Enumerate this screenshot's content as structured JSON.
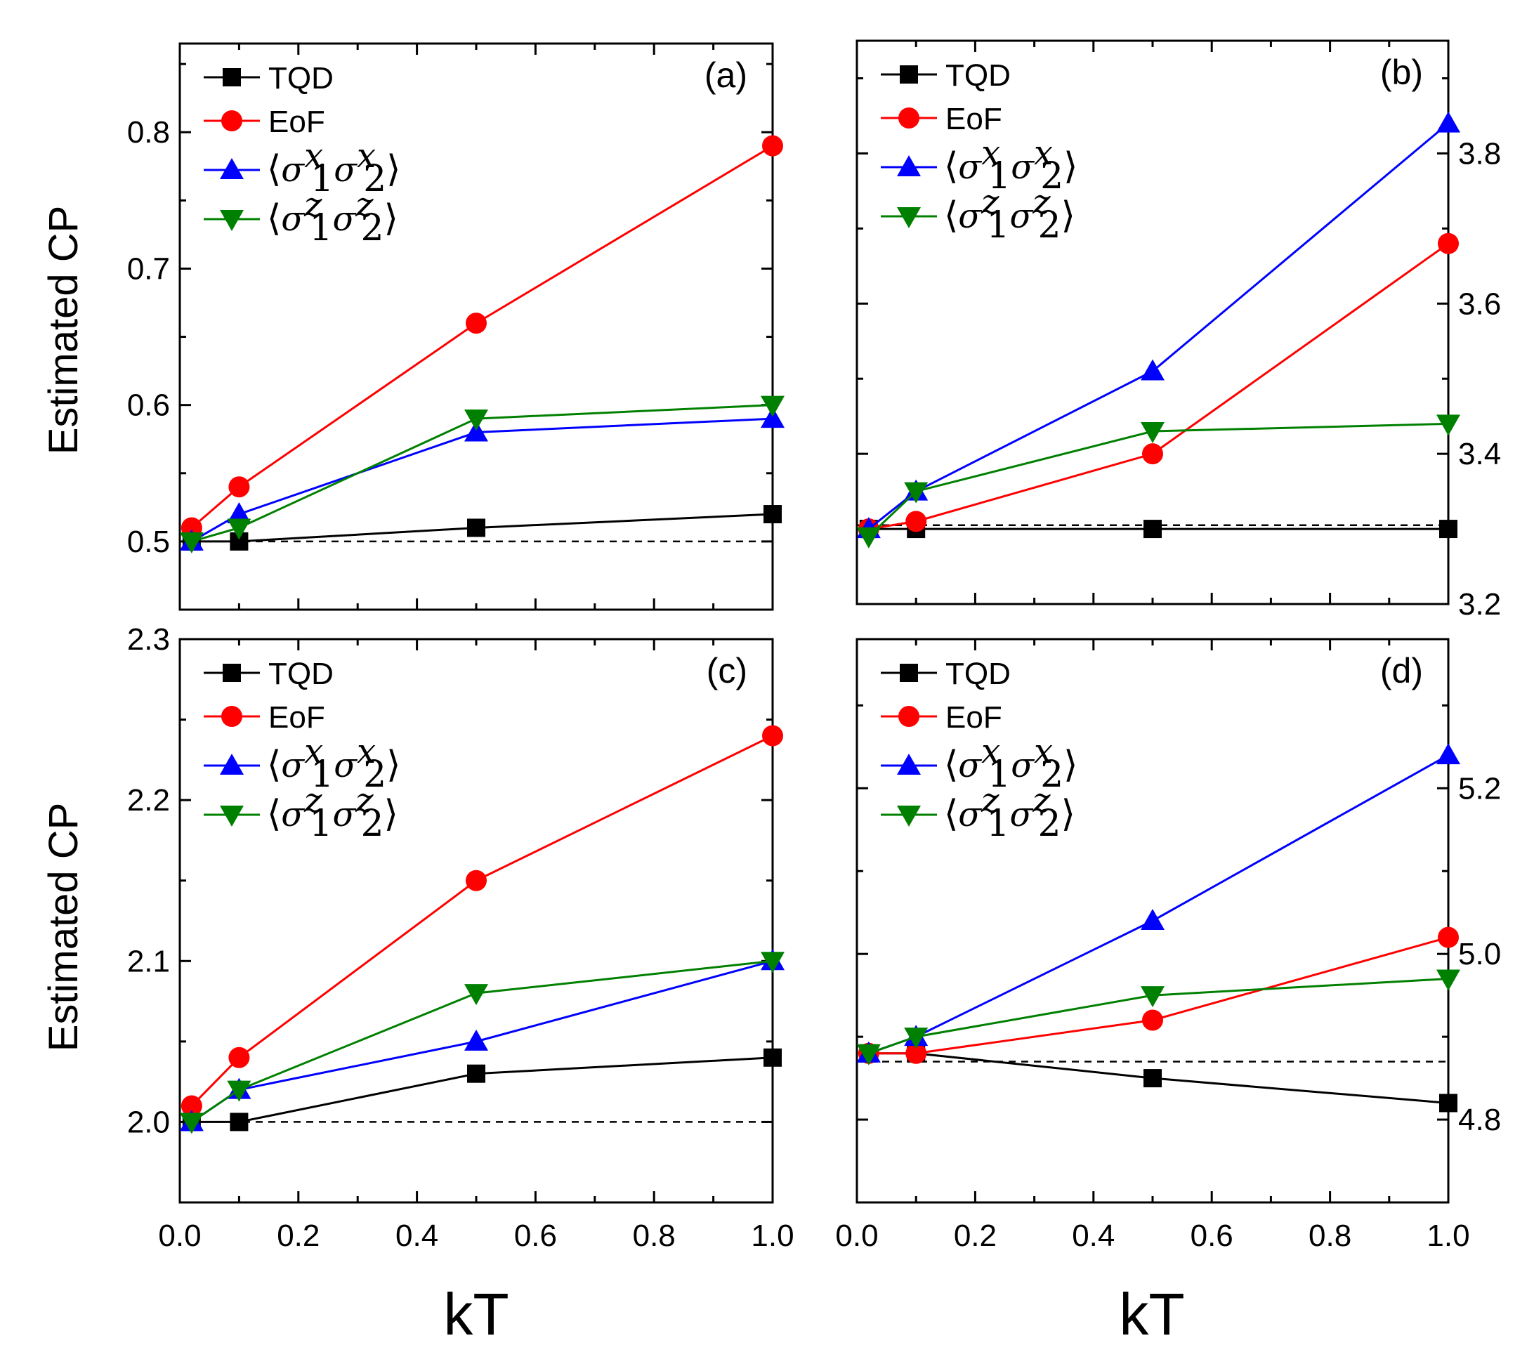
{
  "legend": {
    "tqd": "TQD",
    "eof": "EoF",
    "sxx": "⟨σ₁ˣσ₂ˣ⟩",
    "szz": "⟨σ₁ᶻσ₂ᶻ⟩"
  },
  "colors": {
    "tqd": "#000000",
    "eof": "#ff0000",
    "sxx": "#0000ff",
    "szz": "#008000"
  },
  "chart_data": [
    {
      "type": "line",
      "panel": "(a)",
      "xlabel": "kT",
      "ylabel": "Estimated CP",
      "xlim": [
        0,
        1.0
      ],
      "ylim": [
        0.45,
        0.865
      ],
      "y_axis_side": "left",
      "yticks": [
        "0.5",
        "0.6",
        "0.7",
        "0.8"
      ],
      "xticks": [],
      "reference_line": 0.5,
      "x": [
        0.02,
        0.1,
        0.5,
        1.0
      ],
      "series": [
        {
          "name": "TQD",
          "key": "tqd",
          "marker": "square",
          "values": [
            0.5,
            0.5,
            0.51,
            0.52
          ]
        },
        {
          "name": "EoF",
          "key": "eof",
          "marker": "circle",
          "values": [
            0.51,
            0.54,
            0.66,
            0.79
          ]
        },
        {
          "name": "⟨σ₁ˣσ₂ˣ⟩",
          "key": "sxx",
          "marker": "triangle-up",
          "values": [
            0.5,
            0.52,
            0.58,
            0.59
          ]
        },
        {
          "name": "⟨σ₁ᶻσ₂ᶻ⟩",
          "key": "szz",
          "marker": "triangle-down",
          "values": [
            0.5,
            0.51,
            0.59,
            0.6
          ]
        }
      ]
    },
    {
      "type": "line",
      "panel": "(b)",
      "xlabel": "kT",
      "ylabel": "",
      "xlim": [
        0,
        1.0
      ],
      "ylim": [
        3.2,
        3.95
      ],
      "y_axis_side": "right",
      "yticks": [
        "3.2",
        "3.4",
        "3.6",
        "3.8"
      ],
      "xticks": [],
      "reference_line": 3.305,
      "x": [
        0.02,
        0.1,
        0.5,
        1.0
      ],
      "series": [
        {
          "name": "TQD",
          "key": "tqd",
          "marker": "square",
          "values": [
            3.3,
            3.3,
            3.3,
            3.3
          ]
        },
        {
          "name": "EoF",
          "key": "eof",
          "marker": "circle",
          "values": [
            3.3,
            3.31,
            3.4,
            3.68
          ]
        },
        {
          "name": "⟨σ₁ˣσ₂ˣ⟩",
          "key": "sxx",
          "marker": "triangle-up",
          "values": [
            3.3,
            3.35,
            3.51,
            3.84
          ]
        },
        {
          "name": "⟨σ₁ᶻσ₂ᶻ⟩",
          "key": "szz",
          "marker": "triangle-down",
          "values": [
            3.29,
            3.35,
            3.43,
            3.44
          ]
        }
      ]
    },
    {
      "type": "line",
      "panel": "(c)",
      "xlabel": "kT",
      "ylabel": "Estimated CP",
      "xlim": [
        0,
        1.0
      ],
      "ylim": [
        1.95,
        2.3
      ],
      "y_axis_side": "left",
      "yticks": [
        "2.0",
        "2.1",
        "2.2",
        "2.3"
      ],
      "xticks": [
        "0.0",
        "0.2",
        "0.4",
        "0.6",
        "0.8",
        "1.0"
      ],
      "reference_line": 2.0,
      "x": [
        0.02,
        0.1,
        0.5,
        1.0
      ],
      "series": [
        {
          "name": "TQD",
          "key": "tqd",
          "marker": "square",
          "values": [
            2.0,
            2.0,
            2.03,
            2.04
          ]
        },
        {
          "name": "EoF",
          "key": "eof",
          "marker": "circle",
          "values": [
            2.01,
            2.04,
            2.15,
            2.24
          ]
        },
        {
          "name": "⟨σ₁ˣσ₂ˣ⟩",
          "key": "sxx",
          "marker": "triangle-up",
          "values": [
            2.0,
            2.02,
            2.05,
            2.1
          ]
        },
        {
          "name": "⟨σ₁ᶻσ₂ᶻ⟩",
          "key": "szz",
          "marker": "triangle-down",
          "values": [
            2.0,
            2.02,
            2.08,
            2.1
          ]
        }
      ]
    },
    {
      "type": "line",
      "panel": "(d)",
      "xlabel": "kT",
      "ylabel": "",
      "xlim": [
        0,
        1.0
      ],
      "ylim": [
        4.7,
        5.38
      ],
      "y_axis_side": "right",
      "yticks": [
        "4.8",
        "5.0",
        "5.2"
      ],
      "xticks": [
        "0.0",
        "0.2",
        "0.4",
        "0.6",
        "0.8",
        "1.0"
      ],
      "reference_line": 4.87,
      "x": [
        0.02,
        0.1,
        0.5,
        1.0
      ],
      "series": [
        {
          "name": "TQD",
          "key": "tqd",
          "marker": "square",
          "values": [
            4.88,
            4.88,
            4.85,
            4.82
          ]
        },
        {
          "name": "EoF",
          "key": "eof",
          "marker": "circle",
          "values": [
            4.88,
            4.88,
            4.92,
            5.02
          ]
        },
        {
          "name": "⟨σ₁ˣσ₂ˣ⟩",
          "key": "sxx",
          "marker": "triangle-up",
          "values": [
            4.88,
            4.9,
            5.04,
            5.24
          ]
        },
        {
          "name": "⟨σ₁ᶻσ₂ᶻ⟩",
          "key": "szz",
          "marker": "triangle-down",
          "values": [
            4.88,
            4.9,
            4.95,
            4.97
          ]
        }
      ]
    }
  ]
}
